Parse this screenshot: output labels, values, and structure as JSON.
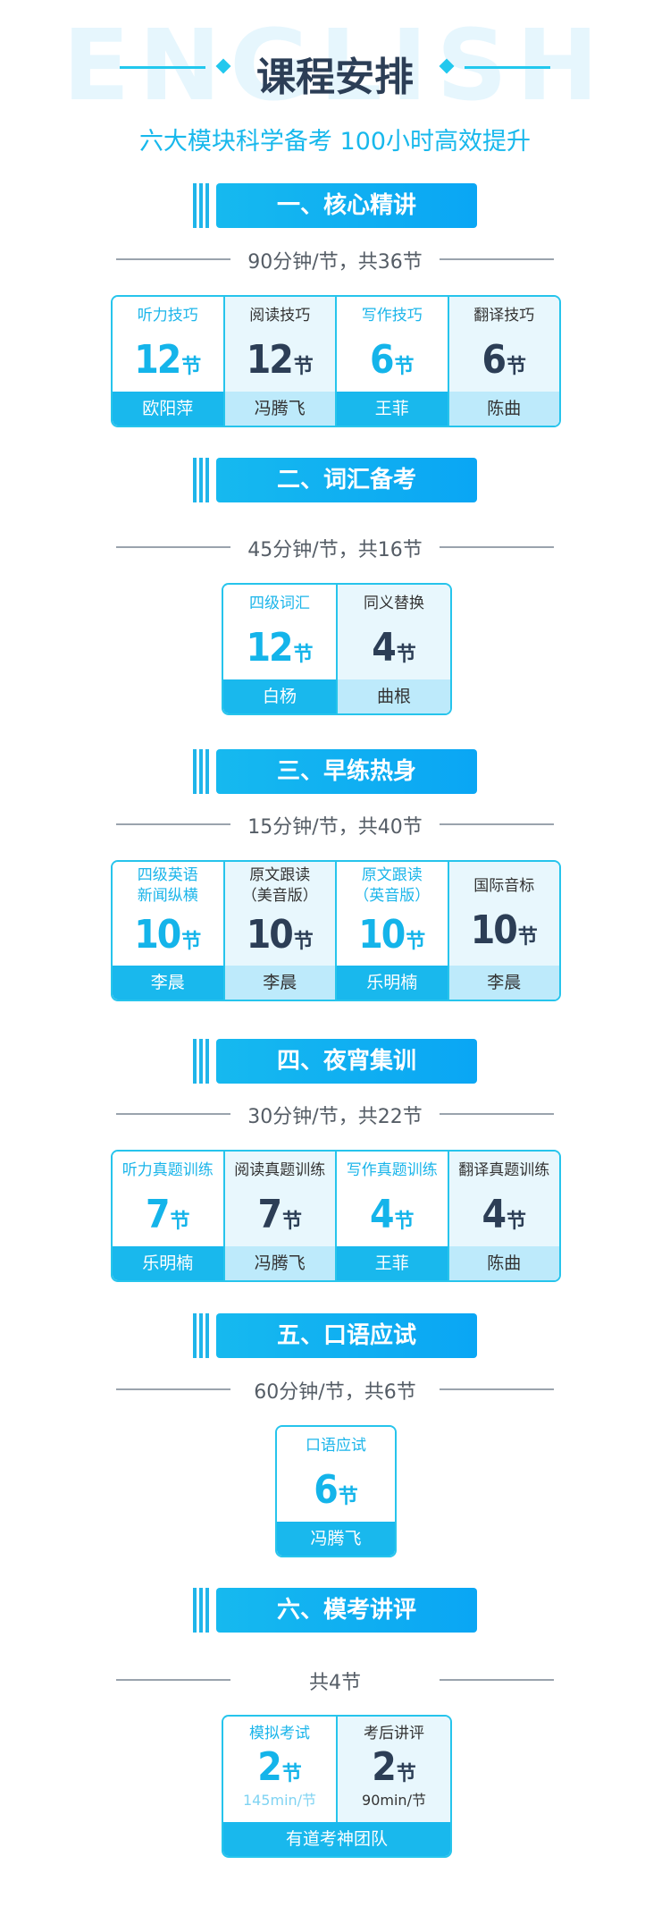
{
  "header": {
    "watermark": "ENGLISH",
    "title": "课程安排",
    "subtitle": "六大模块科学备考 100小时高效提升"
  },
  "colors": {
    "accent": "#19b8ed",
    "title": "#2c3e56",
    "card_light": "#e8f7fd",
    "card_footer_light": "#bdeafb"
  },
  "sections": [
    {
      "title": "一、核心精讲",
      "meta": "90分钟/节，共36节",
      "cards": [
        {
          "name": "听力技巧",
          "count": "12",
          "unit": "节",
          "teacher": "欧阳萍"
        },
        {
          "name": "阅读技巧",
          "count": "12",
          "unit": "节",
          "teacher": "冯腾飞"
        },
        {
          "name": "写作技巧",
          "count": "6",
          "unit": "节",
          "teacher": "王菲"
        },
        {
          "name": "翻译技巧",
          "count": "6",
          "unit": "节",
          "teacher": "陈曲"
        }
      ]
    },
    {
      "title": "二、词汇备考",
      "meta": "45分钟/节，共16节",
      "cards": [
        {
          "name": "四级词汇",
          "count": "12",
          "unit": "节",
          "teacher": "白杨"
        },
        {
          "name": "同义替换",
          "count": "4",
          "unit": "节",
          "teacher": "曲根"
        }
      ]
    },
    {
      "title": "三、早练热身",
      "meta": "15分钟/节，共40节",
      "cards": [
        {
          "name": "四级英语",
          "name2": "新闻纵横",
          "count": "10",
          "unit": "节",
          "teacher": "李晨"
        },
        {
          "name": "原文跟读",
          "name2": "（美音版）",
          "count": "10",
          "unit": "节",
          "teacher": "李晨"
        },
        {
          "name": "原文跟读",
          "name2": "（英音版）",
          "count": "10",
          "unit": "节",
          "teacher": "乐明楠"
        },
        {
          "name": "国际音标",
          "count": "10",
          "unit": "节",
          "teacher": "李晨"
        }
      ]
    },
    {
      "title": "四、夜宵集训",
      "meta": "30分钟/节，共22节",
      "cards": [
        {
          "name": "听力真题训练",
          "count": "7",
          "unit": "节",
          "teacher": "乐明楠"
        },
        {
          "name": "阅读真题训练",
          "count": "7",
          "unit": "节",
          "teacher": "冯腾飞"
        },
        {
          "name": "写作真题训练",
          "count": "4",
          "unit": "节",
          "teacher": "王菲"
        },
        {
          "name": "翻译真题训练",
          "count": "4",
          "unit": "节",
          "teacher": "陈曲"
        }
      ]
    },
    {
      "title": "五、口语应试",
      "meta": "60分钟/节，共6节",
      "cards": [
        {
          "name": "口语应试",
          "count": "6",
          "unit": "节",
          "teacher": "冯腾飞"
        }
      ]
    },
    {
      "title": "六、模考讲评",
      "meta": "共4节",
      "cards": [
        {
          "name": "模拟考试",
          "count": "2",
          "unit": "节",
          "note": "145min/节"
        },
        {
          "name": "考后讲评",
          "count": "2",
          "unit": "节",
          "note": "90min/节"
        }
      ],
      "footer": "有道考神团队"
    }
  ]
}
